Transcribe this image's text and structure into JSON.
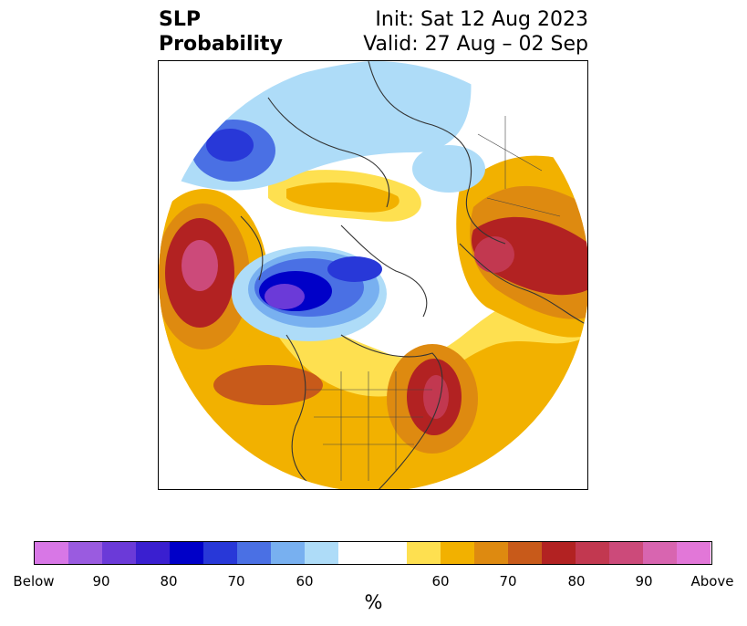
{
  "header": {
    "title_line1": "SLP",
    "title_line2": "Probability",
    "init_text": "Init: Sat 12 Aug 2023",
    "valid_text": "Valid: 27 Aug – 02 Sep"
  },
  "colorbar": {
    "colors": [
      "#d877e6",
      "#9a5be0",
      "#6b3ad8",
      "#3a1fd0",
      "#0000c8",
      "#2838d8",
      "#4a70e4",
      "#78b0f0",
      "#aedcf8",
      "#ffffff",
      "#fee050",
      "#f2b100",
      "#de8a10",
      "#c85a1a",
      "#b22222",
      "#c23850",
      "#cc4a7a",
      "#d865b0",
      "#e277d8"
    ],
    "ticks": [
      "Below",
      "90",
      "80",
      "70",
      "60",
      "60",
      "70",
      "80",
      "90",
      "Above"
    ],
    "units_label": "%"
  },
  "map": {
    "projection": "north-polar-stereographic",
    "field": "sea-level-pressure-probability"
  }
}
